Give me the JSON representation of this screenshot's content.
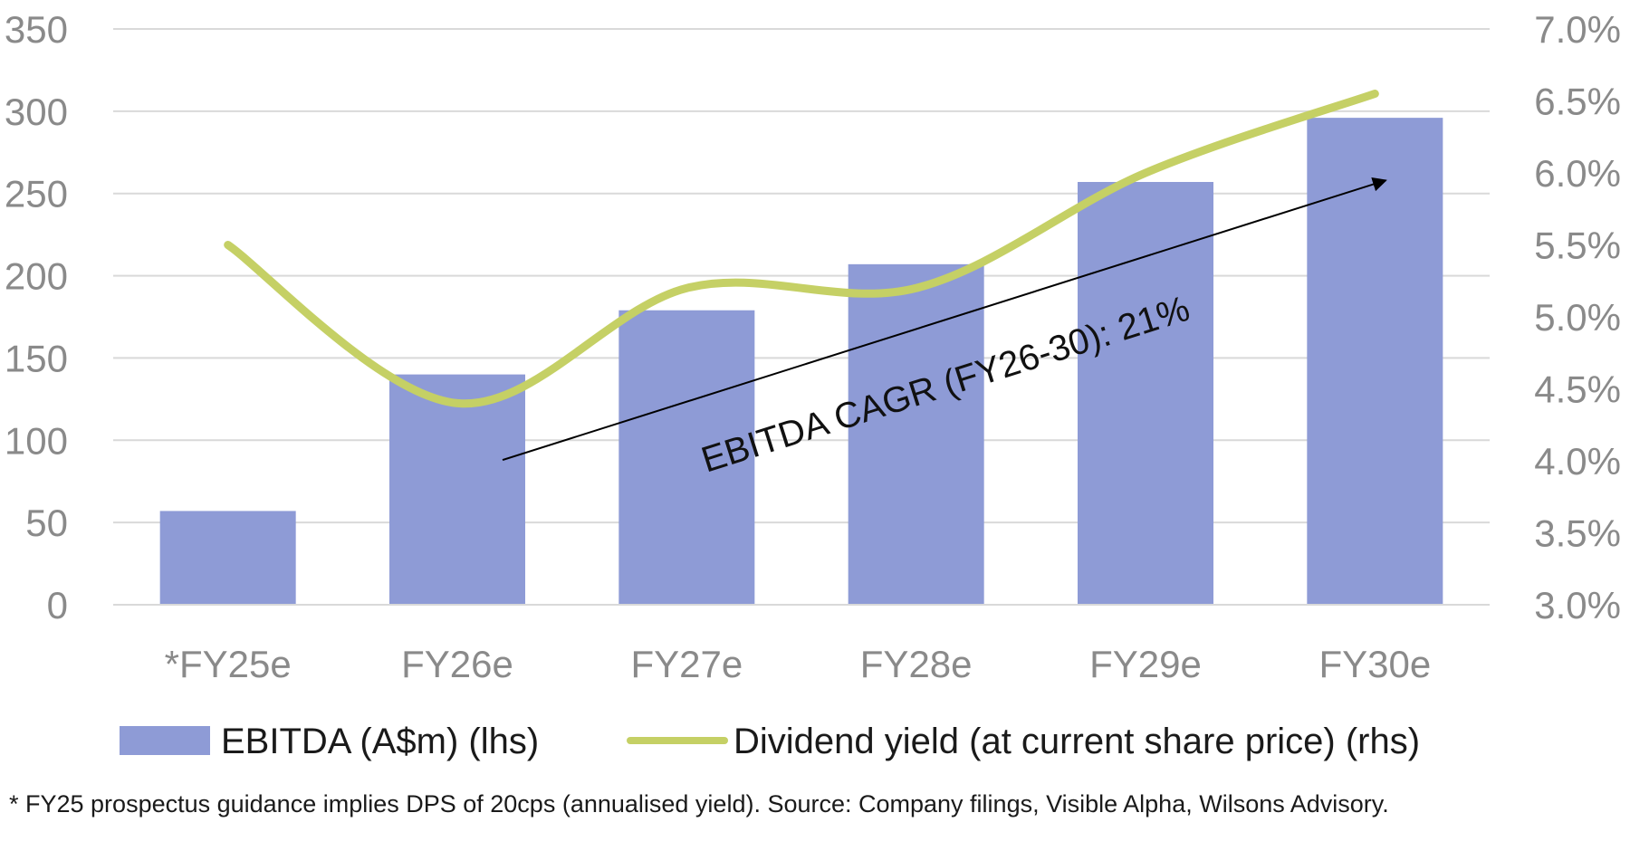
{
  "chart_data": {
    "type": "bar",
    "categories": [
      "*FY25e",
      "FY26e",
      "FY27e",
      "FY28e",
      "FY29e",
      "FY30e"
    ],
    "series": [
      {
        "name": "EBITDA (A$m) (lhs)",
        "type": "bar",
        "axis": "left",
        "color": "#8e9bd6",
        "values": [
          57,
          140,
          179,
          207,
          257,
          296
        ]
      },
      {
        "name": "Dividend yield (at current share price) (rhs)",
        "type": "line",
        "axis": "right",
        "color": "#c5d065",
        "values": [
          5.5,
          4.4,
          5.2,
          5.2,
          6.0,
          6.55
        ]
      }
    ],
    "y_left": {
      "lim": [
        0,
        350
      ],
      "ticks": [
        0,
        50,
        100,
        150,
        200,
        250,
        300,
        350
      ],
      "tick_labels": [
        "0",
        "50",
        "100",
        "150",
        "200",
        "250",
        "300",
        "350"
      ]
    },
    "y_right": {
      "lim": [
        3.0,
        7.0
      ],
      "ticks": [
        3.0,
        3.5,
        4.0,
        4.5,
        5.0,
        5.5,
        6.0,
        6.5,
        7.0
      ],
      "tick_labels": [
        "3.0%",
        "3.5%",
        "4.0%",
        "4.5%",
        "5.0%",
        "5.5%",
        "6.0%",
        "6.5%",
        "7.0%"
      ]
    },
    "grid": true,
    "gridline_color": "#d9d9d9",
    "legend_position": "bottom",
    "annotation": {
      "text": "EBITDA CAGR (FY26-30): 21%",
      "from_category": "FY26e",
      "to_category": "FY30e",
      "from_value": 88,
      "to_value": 258
    },
    "footnote": "* FY25 prospectus guidance implies DPS of 20cps (annualised yield). Source: Company filings, Visible Alpha, Wilsons Advisory."
  }
}
